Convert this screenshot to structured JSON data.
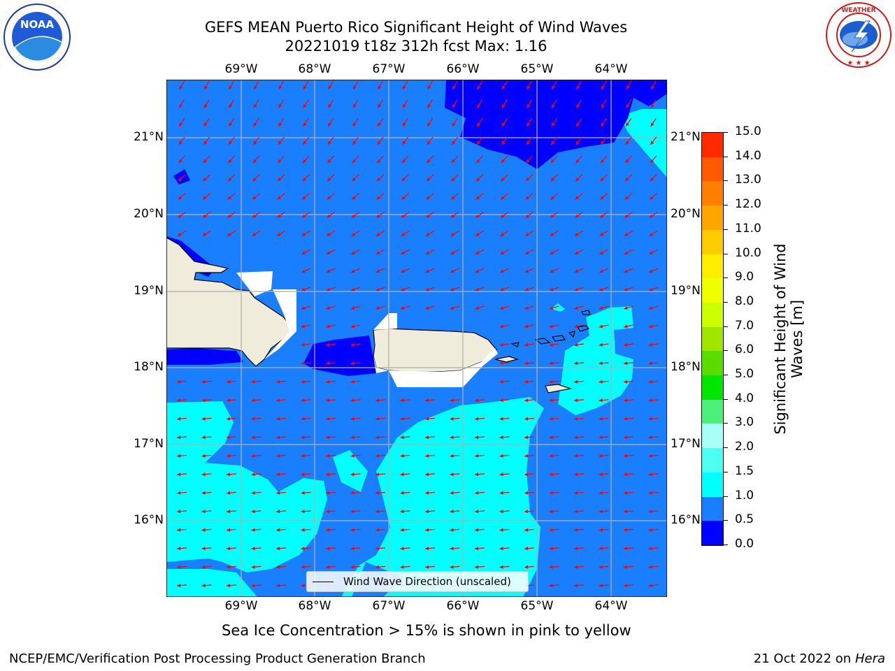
{
  "title": {
    "line1": "GEFS MEAN Puerto Rico Significant Height of Wind Waves",
    "line2": "20221019 t18z 312h fcst   Max: 1.16"
  },
  "logos": {
    "noaa": {
      "icon": "noaa-logo",
      "text": "NOAA"
    },
    "nws": {
      "icon": "nws-logo",
      "text": "NATIONAL WEATHER SERVICE"
    }
  },
  "map": {
    "lon_labels": [
      "69°W",
      "68°W",
      "67°W",
      "66°W",
      "65°W",
      "64°W"
    ],
    "lat_labels": [
      "21°N",
      "20°N",
      "19°N",
      "18°N",
      "17°N",
      "16°N"
    ],
    "colors": {
      "ocean_bg": "#1a7fff",
      "calm": "#0000ff",
      "moderate": "#00ffff",
      "land": "#efecdc",
      "arrow": "#ff0000",
      "grid": "#b0b0b0"
    },
    "wind_wave_direction": "westward (east-northeasterly waves)"
  },
  "legend": {
    "label": "Wind Wave Direction (unscaled)"
  },
  "colorbar": {
    "title": "Significant Height of Wind Waves [m]",
    "title_line1": "Significant Height of Wind",
    "title_line2": "Waves [m]",
    "ticks": [
      "15.0",
      "14.0",
      "13.0",
      "12.0",
      "11.0",
      "10.0",
      "9.0",
      "8.0",
      "7.0",
      "6.0",
      "5.0",
      "4.0",
      "3.0",
      "2.0",
      "1.5",
      "1.0",
      "0.5",
      "0.0"
    ],
    "colors_bottom_to_top": [
      "#0000ff",
      "#1a7fff",
      "#00ffff",
      "#4cfff0",
      "#a8fff8",
      "#4cf07a",
      "#00e600",
      "#5adc00",
      "#a0e600",
      "#ccff00",
      "#f0ff00",
      "#ffee00",
      "#ffcc00",
      "#ffa500",
      "#ff8000",
      "#ff5a00",
      "#ff2a00",
      "#ff0000"
    ]
  },
  "caption": "Sea Ice Concentration > 15% is shown in pink to yellow",
  "footer": {
    "left": "NCEP/EMC/Verification Post Processing Product Generation Branch",
    "date": "21 Oct 2022 on ",
    "host": "Hera"
  }
}
